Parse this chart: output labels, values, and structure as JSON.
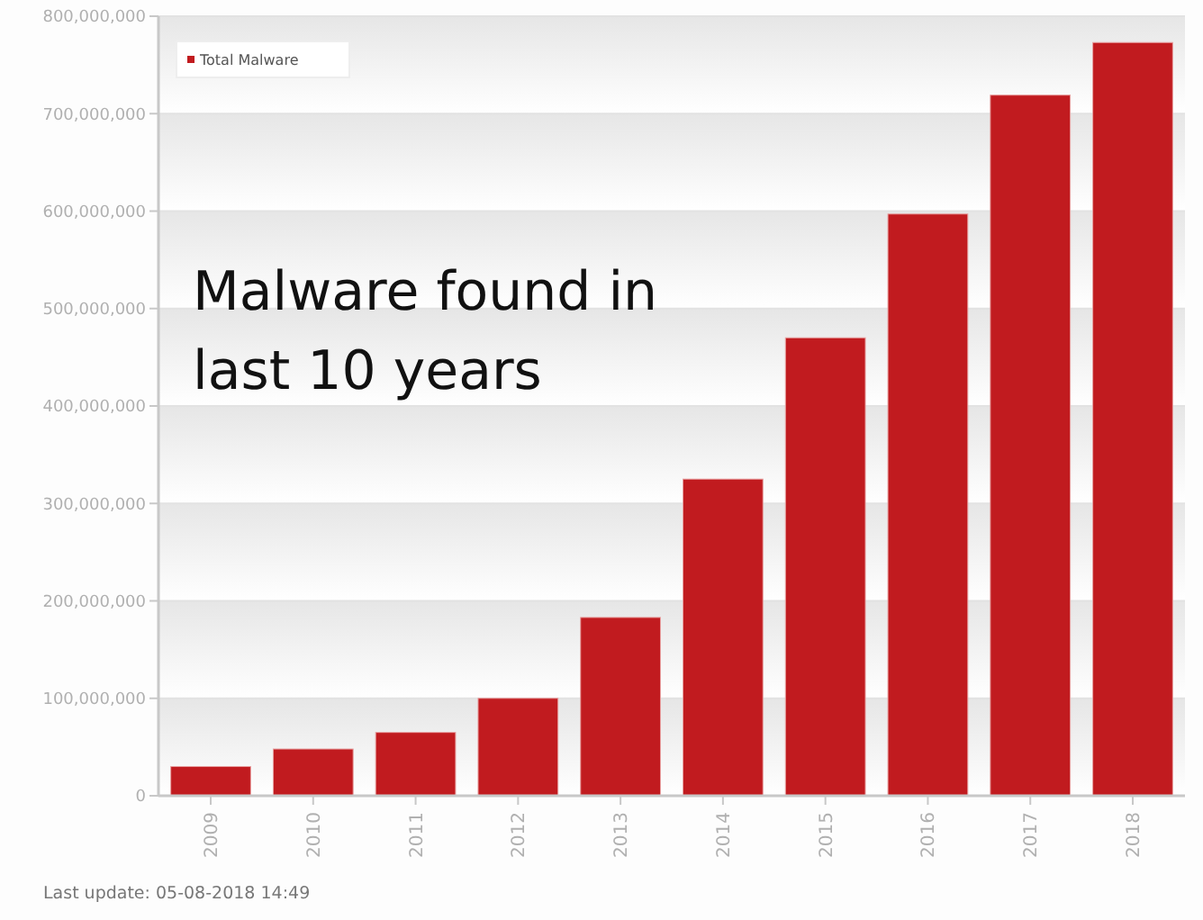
{
  "chart_data": {
    "type": "bar",
    "title": "Malware found in last 10 years",
    "categories": [
      "2009",
      "2010",
      "2011",
      "2012",
      "2013",
      "2014",
      "2015",
      "2016",
      "2017",
      "2018"
    ],
    "series": [
      {
        "name": "Total Malware",
        "color": "#c11b1f",
        "values": [
          30000000,
          48000000,
          65000000,
          100000000,
          183000000,
          325000000,
          470000000,
          597000000,
          719000000,
          773000000
        ]
      }
    ],
    "ylim": [
      0,
      800000000
    ],
    "yticks": [
      {
        "value": 0,
        "label": "0"
      },
      {
        "value": 100000000,
        "label": "100,000,000"
      },
      {
        "value": 200000000,
        "label": "200,000,000"
      },
      {
        "value": 300000000,
        "label": "300,000,000"
      },
      {
        "value": 400000000,
        "label": "400,000,000"
      },
      {
        "value": 500000000,
        "label": "500,000,000"
      },
      {
        "value": 600000000,
        "label": "600,000,000"
      },
      {
        "value": 700000000,
        "label": "700,000,000"
      },
      {
        "value": 800000000,
        "label": "800,000,000"
      }
    ],
    "grid": "y",
    "legend": "top left",
    "annotations": [
      "Last update: 05-08-2018 14:49"
    ]
  }
}
